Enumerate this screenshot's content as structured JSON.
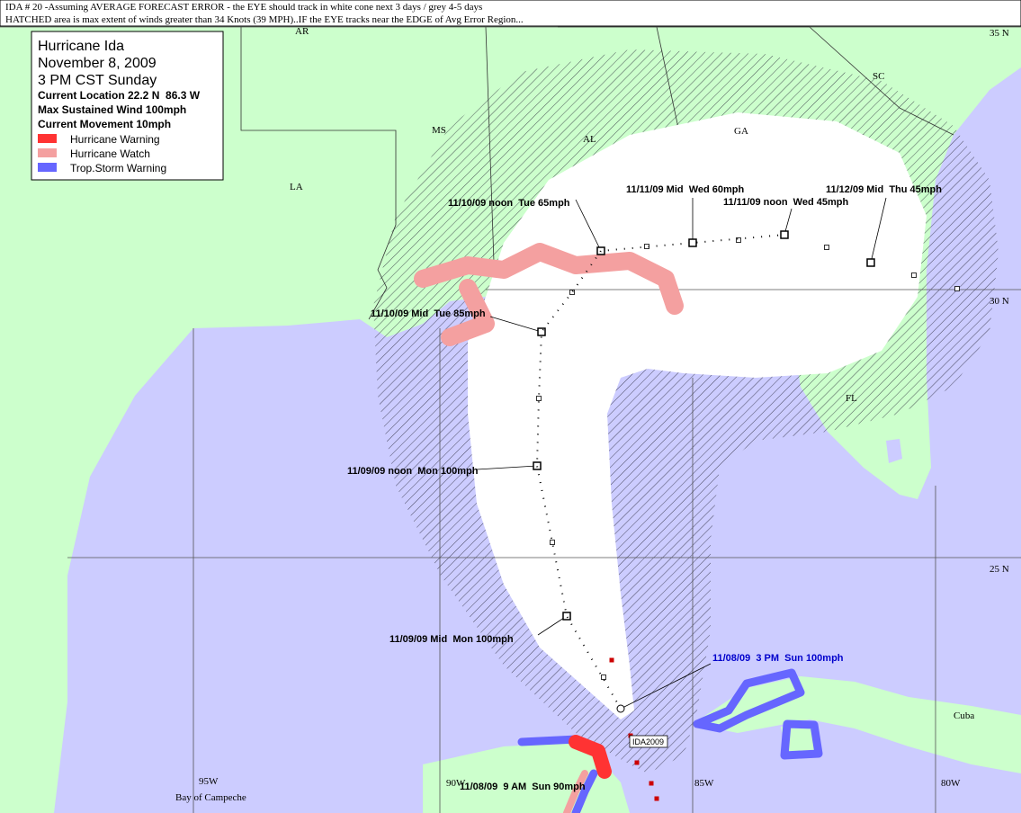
{
  "header": {
    "lines": [
      "IDA # 20 -Assuming AVERAGE FORECAST ERROR - the EYE should track in white cone next 3 days / grey 4-5 days",
      "HATCHED area is max extent of winds greater than 34 Knots (39 MPH)..IF the EYE tracks near the EDGE of Avg Error Region..."
    ]
  },
  "legend": {
    "title": "Hurricane Ida",
    "date": "November 8, 2009",
    "time": "3 PM CST Sunday",
    "details": [
      "Current Location 22.2 N  86.3 W",
      "Max Sustained Wind 100mph",
      "Current Movement 10mph"
    ],
    "items": [
      {
        "label": "Hurricane Warning",
        "color": "#ff3333"
      },
      {
        "label": "Hurricane Watch",
        "color": "#f4a0a0"
      },
      {
        "label": "Trop.Storm Warning",
        "color": "#6666ff"
      }
    ]
  },
  "map": {
    "place_labels": [
      "AR",
      "MS",
      "AL",
      "GA",
      "SC",
      "LA",
      "FL",
      "Cuba",
      "Bay of Campeche"
    ],
    "grid_labels": [
      "35 N",
      "30 N",
      "25 N",
      "95W",
      "90W",
      "85W",
      "80W"
    ],
    "forecast_labels": [
      "11/10/09 noon  Tue 65mph",
      "11/11/09 Mid  Wed 60mph",
      "11/11/09 noon  Wed 45mph",
      "11/12/09 Mid  Thu 45mph",
      "11/10/09 Mid  Tue 85mph",
      "11/09/09 noon  Mon 100mph",
      "11/09/09 Mid  Mon 100mph",
      "11/08/09  3 PM  Sun 100mph",
      "11/08/09  9 AM  Sun 90mph"
    ],
    "storm_tag": "IDA2009"
  }
}
